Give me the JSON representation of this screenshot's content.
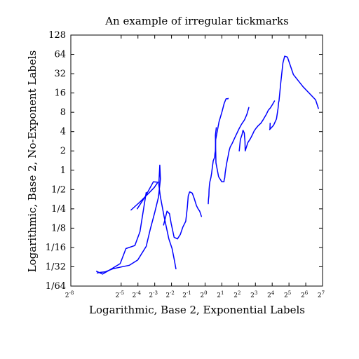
{
  "chart_data": {
    "type": "line",
    "title": "An example of irregular tickmarks",
    "xlabel": "Logarithmic, Base 2, Exponential Labels",
    "ylabel": "Logarithmic, Base 2, No-Exponent Labels",
    "x_scale": "log2",
    "y_scale": "log2",
    "xlim": [
      0.00390625,
      128
    ],
    "ylim": [
      0.015625,
      128
    ],
    "x_tick_base": "2",
    "x_tick_exponents": [
      "-8",
      "-5",
      "-4",
      "-3",
      "-2",
      "-1",
      "0",
      "1",
      "2",
      "3",
      "4",
      "5",
      "6",
      "7"
    ],
    "x_tick_values": [
      0.00390625,
      0.03125,
      0.0625,
      0.125,
      0.25,
      0.5,
      1,
      2,
      4,
      8,
      16,
      32,
      64,
      128
    ],
    "y_tick_labels": [
      "1/64",
      "1/32",
      "1/16",
      "1/8",
      "1/4",
      "1/2",
      "1",
      "2",
      "4",
      "8",
      "16",
      "32",
      "64",
      "128"
    ],
    "y_tick_values": [
      0.015625,
      0.03125,
      0.0625,
      0.125,
      0.25,
      0.5,
      1,
      2,
      4,
      8,
      16,
      32,
      64,
      128
    ],
    "grid": false,
    "line_color": "#0000ff",
    "series": [
      {
        "x": [
          0.047,
          0.068,
          0.098,
          0.123,
          0.142,
          0.118,
          0.086,
          0.0607
        ],
        "y": [
          0.24,
          0.32,
          0.44,
          0.54,
          0.65,
          0.66,
          0.4,
          0.25
        ]
      },
      {
        "x": [
          0.088,
          0.068,
          0.055,
          0.038,
          0.03,
          0.019,
          0.0145,
          0.0113
        ],
        "y": [
          0.45,
          0.11,
          0.067,
          0.06,
          0.035,
          0.0275,
          0.024,
          0.0266
        ]
      },
      {
        "x": [
          0.0116,
          0.0116,
          0.013,
          0.016,
          0.022,
          0.031,
          0.044,
          0.062,
          0.088,
          0.104,
          0.125,
          0.146,
          0.158,
          0.154,
          0.148,
          0.157,
          0.184,
          0.224,
          0.256,
          0.281,
          0.3
        ],
        "y": [
          0.025,
          0.025,
          0.0255,
          0.026,
          0.029,
          0.031,
          0.033,
          0.04,
          0.065,
          0.12,
          0.22,
          0.38,
          0.73,
          1.2,
          0.6,
          0.4,
          0.19,
          0.085,
          0.06,
          0.04,
          0.029
        ]
      },
      {
        "x": [
          0.18,
          0.208,
          0.23,
          0.246,
          0.278,
          0.32,
          0.36,
          0.4,
          0.45,
          0.48,
          0.5,
          0.53,
          0.59,
          0.64,
          0.7,
          0.75,
          0.8,
          0.86
        ],
        "y": [
          0.14,
          0.23,
          0.21,
          0.15,
          0.09,
          0.085,
          0.1,
          0.13,
          0.16,
          0.26,
          0.4,
          0.46,
          0.44,
          0.36,
          0.28,
          0.25,
          0.23,
          0.19
        ]
      },
      {
        "x": [
          1.59,
          1.53,
          1.57,
          1.75,
          2.0,
          2.18,
          2.2,
          2.25,
          2.29,
          2.33,
          2.44,
          2.59,
          2.7,
          2.82,
          3.05,
          3.47,
          4.05,
          4.5,
          5.1,
          5.61,
          6.1
        ],
        "y": [
          4.6,
          3.5,
          1.3,
          0.79,
          0.66,
          0.66,
          0.71,
          0.76,
          0.9,
          1.0,
          1.29,
          1.65,
          2.02,
          2.3,
          2.6,
          3.3,
          4.4,
          5.2,
          6.1,
          7.4,
          9.5
        ]
      },
      {
        "x": [
          1.14,
          1.15,
          1.17,
          1.18,
          1.2,
          1.22,
          1.24,
          1.27,
          1.31,
          1.35,
          1.4,
          1.49,
          1.5,
          1.53,
          1.55,
          1.78,
          2.0,
          2.2,
          2.38,
          2.49,
          2.57,
          2.59
        ],
        "y": [
          0.3,
          0.35,
          0.4,
          0.5,
          0.6,
          0.66,
          0.7,
          0.76,
          0.9,
          1.1,
          1.4,
          1.6,
          1.8,
          2.0,
          3.0,
          5.7,
          8.0,
          11.0,
          13.0,
          13.0,
          13.0,
          13.2
        ]
      },
      {
        "x": [
          4.1,
          4.3,
          4.6,
          4.8,
          5.05,
          5.2,
          5.25,
          5.85,
          6.5,
          7.1,
          7.6,
          8.2,
          8.9,
          10.0,
          11.1,
          12.5,
          13.6,
          14.9,
          16.1,
          17.6
        ],
        "y": [
          2.0,
          3.0,
          3.6,
          4.2,
          3.8,
          2.8,
          2.0,
          2.7,
          3.1,
          3.6,
          4.1,
          4.5,
          4.9,
          5.4,
          6.2,
          7.4,
          8.6,
          9.4,
          10.5,
          12.0
        ]
      },
      {
        "x": [
          14.7,
          14.6,
          14.4,
          16.9,
          19.1,
          20.4,
          20.9,
          21.2,
          22.8,
          24.9,
          26.8,
          30.0,
          38.4,
          57.3,
          96.0,
          108.0
        ],
        "y": [
          5.4,
          4.4,
          4.3,
          5.0,
          6.3,
          9.3,
          11.5,
          12.0,
          23.0,
          47.0,
          60.0,
          58.0,
          31.0,
          20.0,
          12.5,
          9.2
        ]
      }
    ]
  }
}
